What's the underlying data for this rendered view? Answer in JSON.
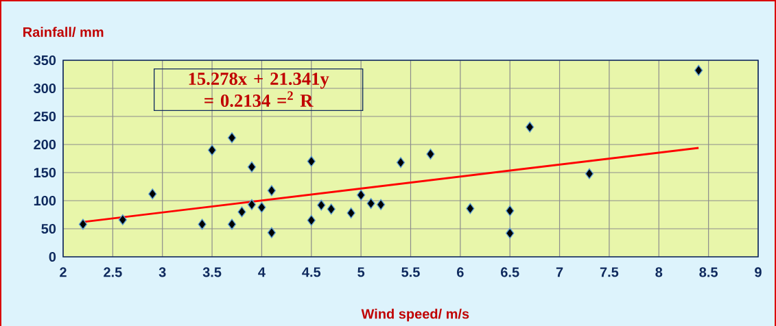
{
  "chart_data": {
    "type": "scatter",
    "xlabel": "Wind speed/ m/s",
    "ylabel": "Rainfall/ mm",
    "annotations": [
      "15.278x + 21.341y = 0.2134 =$^{2}$ R"
    ],
    "series": [
      {
        "color": "#000000",
        "marker": "diamond",
        "x": [
          2.2,
          2.6,
          2.9,
          3.4,
          3.5,
          3.7,
          3.7,
          3.8,
          3.9,
          3.9,
          4.0,
          4.1,
          4.1,
          4.5,
          4.5,
          4.6,
          4.7,
          4.9,
          5.0,
          5.1,
          5.2,
          5.4,
          5.7,
          6.1,
          6.5,
          6.5,
          6.7,
          7.3,
          8.4
        ],
        "values": [
          58,
          66,
          112,
          58,
          190,
          212,
          58,
          80,
          160,
          93,
          88,
          118,
          43,
          170,
          65,
          92,
          85,
          78,
          110,
          95,
          93,
          168,
          183,
          86,
          82,
          42,
          231,
          148,
          332
        ]
      },
      {
        "type": "line",
        "color": "#ff0000",
        "marker": "none",
        "x": [
          2.2,
          8.4
        ],
        "values": [
          62,
          194
        ]
      }
    ],
    "xlim": [
      2,
      9
    ],
    "xticks": [
      2,
      2.5,
      3,
      3.5,
      4,
      4.5,
      5,
      5.5,
      6,
      6.5,
      7,
      7.5,
      8,
      8.5,
      9
    ],
    "ylim": [
      0,
      350
    ],
    "yticks": [
      0,
      50,
      100,
      150,
      200,
      250,
      300,
      350
    ],
    "grid": true
  }
}
